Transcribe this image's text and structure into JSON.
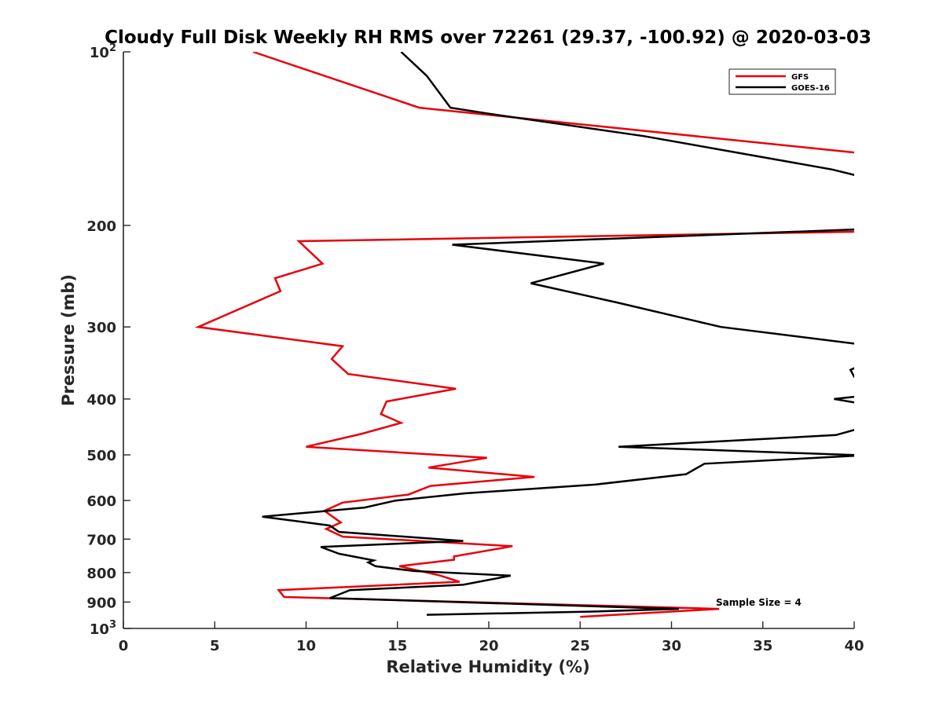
{
  "chart_data": {
    "type": "line",
    "title": "Cloudy Full Disk Weekly RH RMS over 72261 (29.37, -100.92) @ 2020-03-03",
    "xlabel": "Relative Humidity (%)",
    "ylabel": "Pressure (mb)",
    "xlim": [
      0,
      40
    ],
    "ylim": [
      100,
      1000
    ],
    "y_scale": "log",
    "y_reversed": true,
    "x_ticks": [
      0,
      5,
      10,
      15,
      20,
      25,
      30,
      35,
      40
    ],
    "x_tick_labels": [
      "0",
      "5",
      "10",
      "15",
      "20",
      "25",
      "30",
      "35",
      "40"
    ],
    "y_ticks": [
      100,
      200,
      300,
      400,
      500,
      600,
      700,
      800,
      900,
      1000
    ],
    "y_tick_labels": [
      {
        "base": "10",
        "exp": "2"
      },
      {
        "base": "200",
        "exp": ""
      },
      {
        "base": "300",
        "exp": ""
      },
      {
        "base": "400",
        "exp": ""
      },
      {
        "base": "500",
        "exp": ""
      },
      {
        "base": "600",
        "exp": ""
      },
      {
        "base": "700",
        "exp": ""
      },
      {
        "base": "800",
        "exp": ""
      },
      {
        "base": "900",
        "exp": ""
      },
      {
        "base": "10",
        "exp": "3"
      }
    ],
    "legend_position": "top-right",
    "grid": false,
    "annotation": "Sample Size = 4",
    "series": [
      {
        "name": "GFS",
        "color": "#e8000b",
        "points": [
          [
            7.1,
            100
          ],
          [
            16.2,
            125
          ],
          [
            40.5,
            150
          ],
          [
            40.5,
            205
          ],
          [
            9.6,
            213
          ],
          [
            10.9,
            233
          ],
          [
            8.3,
            247
          ],
          [
            8.6,
            260
          ],
          [
            4.1,
            300
          ],
          [
            12.0,
            324
          ],
          [
            11.4,
            341
          ],
          [
            12.3,
            362
          ],
          [
            18.2,
            384
          ],
          [
            14.4,
            404
          ],
          [
            14.1,
            425
          ],
          [
            15.2,
            440
          ],
          [
            13.0,
            460
          ],
          [
            10.0,
            484
          ],
          [
            19.9,
            506
          ],
          [
            16.7,
            526
          ],
          [
            22.5,
            546
          ],
          [
            16.8,
            566
          ],
          [
            15.6,
            586
          ],
          [
            12.0,
            605
          ],
          [
            11.0,
            625
          ],
          [
            11.9,
            655
          ],
          [
            11.1,
            672
          ],
          [
            12.0,
            693
          ],
          [
            21.3,
            720
          ],
          [
            18.1,
            750
          ],
          [
            18.1,
            760
          ],
          [
            15.1,
            780
          ],
          [
            17.3,
            809
          ],
          [
            18.4,
            830
          ],
          [
            8.5,
            858
          ],
          [
            8.8,
            882
          ],
          [
            32.6,
            925
          ],
          [
            25.0,
            955
          ]
        ]
      },
      {
        "name": "GOES-16",
        "color": "#000000",
        "points": [
          [
            15.2,
            100
          ],
          [
            16.6,
            110
          ],
          [
            17.9,
            125
          ],
          [
            20.0,
            128
          ],
          [
            28.5,
            140
          ],
          [
            38.8,
            160
          ],
          [
            40.5,
            165
          ],
          [
            40.5,
            203
          ],
          [
            18.0,
            216
          ],
          [
            26.3,
            233
          ],
          [
            22.3,
            252
          ],
          [
            27.0,
            272
          ],
          [
            32.7,
            300
          ],
          [
            40.5,
            322
          ],
          [
            40.5,
            348
          ],
          [
            39.8,
            356
          ],
          [
            40.0,
            366
          ],
          [
            40.5,
            366
          ],
          [
            40.5,
            395
          ],
          [
            38.9,
            400
          ],
          [
            40.5,
            408
          ],
          [
            40.5,
            448
          ],
          [
            39.0,
            462
          ],
          [
            27.1,
            484
          ],
          [
            40.5,
            501
          ],
          [
            31.8,
            518
          ],
          [
            30.8,
            540
          ],
          [
            25.8,
            563
          ],
          [
            18.7,
            583
          ],
          [
            14.9,
            600
          ],
          [
            13.2,
            617
          ],
          [
            7.6,
            640
          ],
          [
            11.3,
            663
          ],
          [
            11.8,
            680
          ],
          [
            18.6,
            705
          ],
          [
            10.8,
            722
          ],
          [
            11.8,
            742
          ],
          [
            13.7,
            762
          ],
          [
            13.4,
            768
          ],
          [
            13.8,
            780
          ],
          [
            15.9,
            795
          ],
          [
            21.2,
            810
          ],
          [
            18.6,
            840
          ],
          [
            12.4,
            858
          ],
          [
            11.3,
            886
          ],
          [
            30.4,
            925
          ],
          [
            25.5,
            935
          ],
          [
            16.6,
            947
          ]
        ]
      }
    ]
  }
}
